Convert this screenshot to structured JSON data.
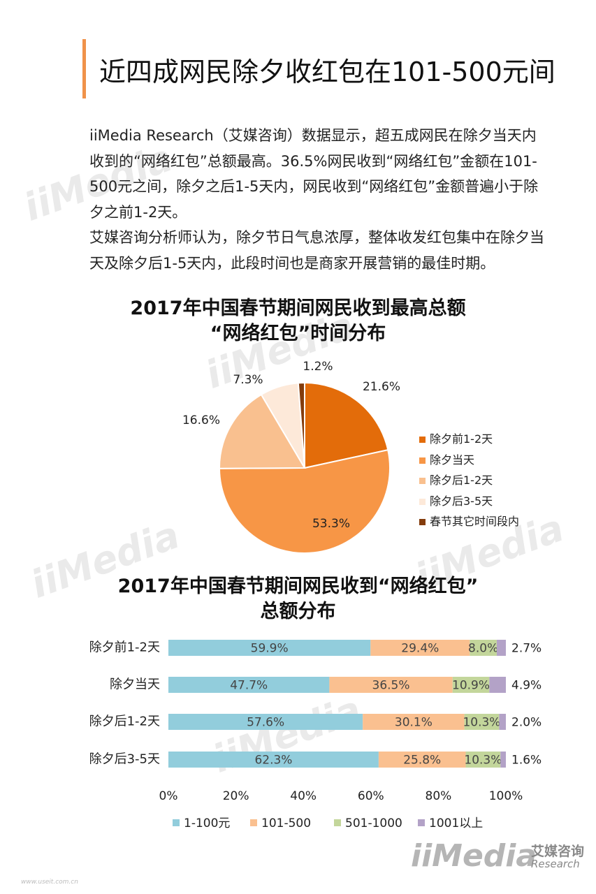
{
  "header": {
    "title": "近四成网民除夕收红包在101-500元间",
    "accent_color": "#f0924a"
  },
  "intro": {
    "paragraph1": "iiMedia Research（艾媒咨询）数据显示，超五成网民在除夕当天内收到的“网络红包”总额最高。36.5%网民收到“网络红包”金额在101-500元之间，除夕之后1-5天内，网民收到“网络红包”金额普遍小于除夕之前1-2天。",
    "paragraph2": "艾媒咨询分析师认为，除夕节日气息浓厚，整体收发红包集中在除夕当天及除夕后1-5天内，此段时间也是商家开展营销的最佳时期。"
  },
  "chart_data": [
    {
      "type": "pie",
      "title": "2017年中国春节期间网民收到最高总额",
      "subtitle": "“网络红包”时间分布",
      "labels": [
        "除夕前1-2天",
        "除夕当天",
        "除夕后1-2天",
        "除夕后3-5天",
        "春节其它时间段内"
      ],
      "values": [
        21.6,
        53.3,
        16.6,
        7.3,
        1.2
      ],
      "value_labels": [
        "21.6%",
        "53.3%",
        "16.6%",
        "7.3%",
        "1.2%"
      ],
      "colors": [
        "#e36c0a",
        "#f79646",
        "#f9c08f",
        "#fde9d9",
        "#843c0c"
      ],
      "legend": "right"
    },
    {
      "type": "bar",
      "orientation": "horizontal",
      "stacked": true,
      "title": "2017年中国春节期间网民收到“网络红包”",
      "subtitle": "总额分布",
      "categories": [
        "除夕前1-2天",
        "除夕当天",
        "除夕后1-2天",
        "除夕后3-5天"
      ],
      "series": [
        {
          "name": "1-100元",
          "color": "#92cddc",
          "values": [
            59.9,
            47.7,
            57.6,
            62.3
          ],
          "labels": [
            "59.9%",
            "47.7%",
            "57.6%",
            "62.3%"
          ]
        },
        {
          "name": "101-500",
          "color": "#fac090",
          "values": [
            29.4,
            36.5,
            30.1,
            25.8
          ],
          "labels": [
            "29.4%",
            "36.5%",
            "30.1%",
            "25.8%"
          ]
        },
        {
          "name": "501-1000",
          "color": "#c3d69b",
          "values": [
            8.0,
            10.9,
            10.3,
            10.3
          ],
          "labels": [
            "8.0%",
            "10.9%",
            "10.3%",
            "10.3%"
          ]
        },
        {
          "name": "1001以上",
          "color": "#b3a2c7",
          "values": [
            2.7,
            4.9,
            2.0,
            1.6
          ],
          "labels": [
            "2.7%",
            "4.9%",
            "2.0%",
            "1.6%"
          ]
        }
      ],
      "xlim": [
        0,
        100
      ],
      "xticks": [
        "0%",
        "20%",
        "40%",
        "60%",
        "80%",
        "100%"
      ],
      "legend": "bottom"
    }
  ],
  "footer": {
    "logo_mark": "iiMedia",
    "logo_cn": "艾媒咨询",
    "logo_en": "Research",
    "url": "www.useit.com.cn"
  }
}
